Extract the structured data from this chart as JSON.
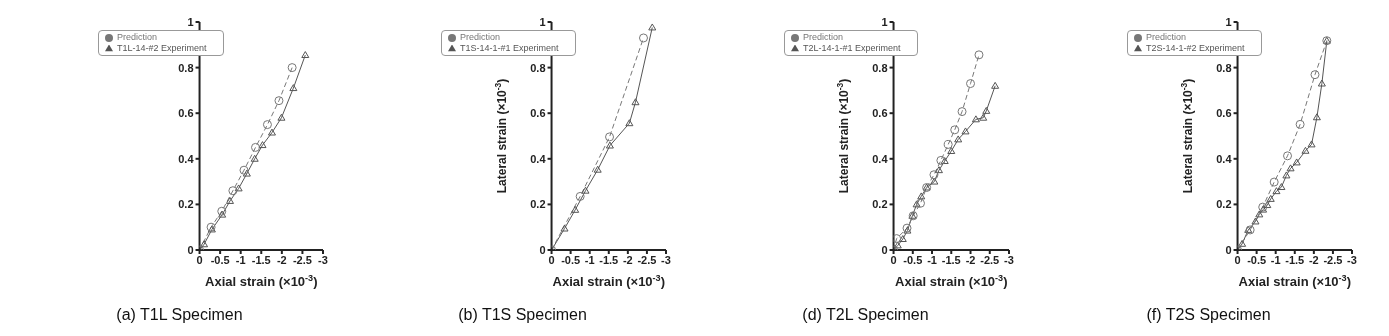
{
  "chart_data": [
    {
      "type": "line",
      "title": "(a) T1L Specimen",
      "xlabel": "Axial strain (×10$^{-3}$)",
      "xlim": [
        0,
        -3
      ],
      "xticks": [
        0,
        -0.5,
        -1,
        -1.5,
        -2,
        -2.5,
        -3
      ],
      "ylim": [
        0,
        1
      ],
      "yticks": [
        0,
        0.2,
        0.4,
        0.6,
        0.8,
        1
      ],
      "legend": "top left",
      "grid": false,
      "series": [
        {
          "name": "T1L-14-#2 Experiment",
          "color": "#555555",
          "marker": "triangle",
          "line_style": "solid",
          "x": [
            0,
            -0.11,
            -0.3,
            -0.55,
            -0.74,
            -0.95,
            -1.15,
            -1.34,
            -1.53,
            -1.76,
            -1.99,
            -2.28,
            -2.57
          ],
          "values": [
            0,
            0.025,
            0.09,
            0.155,
            0.215,
            0.27,
            0.335,
            0.4,
            0.46,
            0.515,
            0.58,
            0.71,
            0.855
          ]
        },
        {
          "name": "Prediction",
          "color": "#777777",
          "marker": "circle",
          "line_style": "dashed",
          "x": [
            0,
            -0.28,
            -0.54,
            -0.81,
            -1.08,
            -1.36,
            -1.65,
            -1.93,
            -2.25
          ],
          "values": [
            0,
            0.1,
            0.17,
            0.26,
            0.35,
            0.45,
            0.55,
            0.655,
            0.8
          ]
        }
      ]
    },
    {
      "type": "line",
      "title": "(b) T1S Specimen",
      "xlabel": "Axial strain (×10$^{-3}$)",
      "ylabel": "Lateral strain (×10$^{-3}$)",
      "xlim": [
        0,
        -3
      ],
      "xticks": [
        0,
        -0.5,
        -1,
        -1.5,
        -2,
        -2.5,
        -3
      ],
      "ylim": [
        0,
        1
      ],
      "yticks": [
        0,
        0.2,
        0.4,
        0.6,
        0.8,
        1
      ],
      "legend": "top left",
      "grid": false,
      "series": [
        {
          "name": "T1S-14-1-#1 Experiment",
          "color": "#555555",
          "marker": "triangle",
          "line_style": "solid",
          "x": [
            0,
            -0.34,
            -0.62,
            -0.89,
            -1.21,
            -1.53,
            -2.04,
            -2.2,
            -2.64
          ],
          "values": [
            0,
            0.094,
            0.176,
            0.26,
            0.352,
            0.458,
            0.556,
            0.648,
            0.976
          ]
        },
        {
          "name": "Prediction",
          "color": "#777777",
          "marker": "circle",
          "line_style": "dashed",
          "x": [
            0,
            -0.75,
            -1.52,
            -2.41
          ],
          "values": [
            0,
            0.235,
            0.496,
            0.93
          ]
        }
      ]
    },
    {
      "type": "line",
      "title": "(d) T2L Specimen",
      "xlabel": "Axial strain (×10$^{-3}$)",
      "ylabel": "Lateral strain (×10$^{-3}$)",
      "xlim": [
        0,
        -3
      ],
      "xticks": [
        0,
        -0.5,
        -1,
        -1.5,
        -2,
        -2.5,
        -3
      ],
      "ylim": [
        0,
        1
      ],
      "yticks": [
        0,
        0.2,
        0.4,
        0.6,
        0.8,
        1
      ],
      "legend": "top left",
      "grid": false,
      "series": [
        {
          "name": "T2L-14-1-#1 Experiment",
          "color": "#555555",
          "marker": "triangle",
          "line_style": "solid",
          "x": [
            0,
            -0.11,
            -0.24,
            -0.36,
            -0.49,
            -0.6,
            -0.72,
            -0.86,
            -1.06,
            -1.18,
            -1.33,
            -1.5,
            -1.68,
            -1.87,
            -2.14,
            -2.33,
            -2.41,
            -2.64
          ],
          "values": [
            0,
            0.02,
            0.048,
            0.085,
            0.15,
            0.2,
            0.235,
            0.274,
            0.3,
            0.35,
            0.39,
            0.434,
            0.485,
            0.52,
            0.573,
            0.58,
            0.61,
            0.72
          ]
        },
        {
          "name": "Prediction",
          "color": "#777777",
          "marker": "circle",
          "line_style": "dashed",
          "x": [
            0,
            -0.08,
            -0.35,
            -0.51,
            -0.7,
            -0.86,
            -1.05,
            -1.23,
            -1.42,
            -1.59,
            -1.78,
            -2.0,
            -2.22
          ],
          "values": [
            0,
            0.05,
            0.096,
            0.15,
            0.205,
            0.274,
            0.33,
            0.393,
            0.463,
            0.527,
            0.607,
            0.73,
            0.856
          ]
        }
      ]
    },
    {
      "type": "line",
      "title": "(f) T2S Specimen",
      "xlabel": "Axial strain (×10$^{-3}$)",
      "ylabel": "Lateral strain (×10$^{-3}$)",
      "xlim": [
        0,
        -3
      ],
      "xticks": [
        0,
        -0.5,
        -1,
        -1.5,
        -2,
        -2.5,
        -3
      ],
      "ylim": [
        0,
        1
      ],
      "yticks": [
        0,
        0.2,
        0.4,
        0.6,
        0.8,
        1
      ],
      "legend": "top left",
      "grid": false,
      "series": [
        {
          "name": "T2S-14-1-#2 Experiment",
          "color": "#555555",
          "marker": "triangle",
          "line_style": "solid",
          "x": [
            0,
            -0.12,
            -0.28,
            -0.47,
            -0.57,
            -0.67,
            -0.78,
            -0.87,
            -1.02,
            -1.15,
            -1.28,
            -1.39,
            -1.55,
            -1.78,
            -1.94,
            -2.08,
            -2.21,
            -2.34
          ],
          "values": [
            0,
            0.027,
            0.088,
            0.125,
            0.156,
            0.177,
            0.197,
            0.224,
            0.258,
            0.276,
            0.327,
            0.358,
            0.384,
            0.435,
            0.463,
            0.582,
            0.73,
            0.918
          ]
        },
        {
          "name": "Prediction",
          "color": "#777777",
          "marker": "circle",
          "line_style": "dashed",
          "x": [
            0,
            -0.33,
            -0.66,
            -0.96,
            -1.31,
            -1.64,
            -2.03,
            -2.34
          ],
          "values": [
            0,
            0.088,
            0.188,
            0.298,
            0.413,
            0.551,
            0.769,
            0.918
          ]
        }
      ]
    }
  ]
}
